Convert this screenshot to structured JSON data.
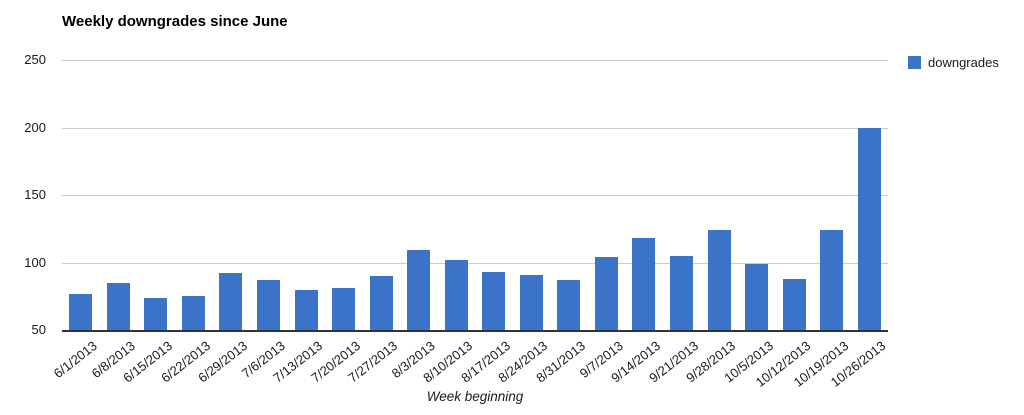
{
  "chart_data": {
    "type": "bar",
    "title": "Weekly downgrades since June",
    "xlabel": "Week beginning",
    "ylabel": "",
    "categories": [
      "6/1/2013",
      "6/8/2013",
      "6/15/2013",
      "6/22/2013",
      "6/29/2013",
      "7/6/2013",
      "7/13/2013",
      "7/20/2013",
      "7/27/2013",
      "8/3/2013",
      "8/10/2013",
      "8/17/2013",
      "8/24/2013",
      "8/31/2013",
      "9/7/2013",
      "9/14/2013",
      "9/21/2013",
      "9/28/2013",
      "10/5/2013",
      "10/12/2013",
      "10/19/2013",
      "10/26/2013"
    ],
    "series": [
      {
        "name": "downgrades",
        "color": "#3b73c9",
        "values": [
          77,
          85,
          74,
          75,
          92,
          87,
          80,
          81,
          90,
          109,
          102,
          93,
          91,
          87,
          104,
          118,
          105,
          124,
          99,
          88,
          124,
          200
        ]
      }
    ],
    "ylim": [
      50,
      250
    ],
    "yticks": [
      250,
      200,
      150,
      100,
      50
    ],
    "grid": true,
    "legend_position": "right",
    "colors": {
      "bar": "#3b73c9",
      "gridline": "#cccccc",
      "axis_line": "#333333",
      "text": "#1a1a1a"
    }
  }
}
